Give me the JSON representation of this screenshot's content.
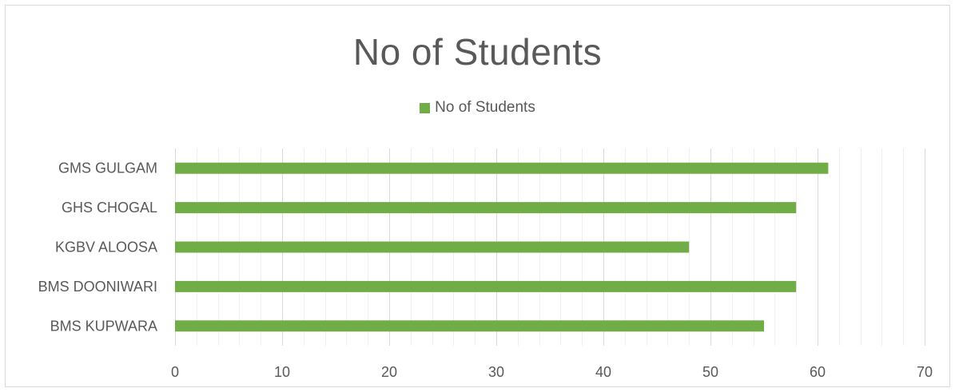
{
  "chart_data": {
    "type": "bar",
    "orientation": "horizontal",
    "title": "No of Students",
    "categories": [
      "BMS KUPWARA",
      "BMS DOONIWARI",
      "KGBV ALOOSA",
      "GHS CHOGAL",
      "GMS GULGAM"
    ],
    "series": [
      {
        "name": "No of Students",
        "values": [
          55,
          58,
          48,
          58,
          61
        ],
        "color": "#70ad47"
      }
    ],
    "xlim": [
      0,
      70
    ],
    "x_ticks": [
      "0",
      "10",
      "20",
      "30",
      "40",
      "50",
      "60",
      "70"
    ],
    "minor_grid_step": 2,
    "legend_position": "top",
    "grid": true,
    "xlabel": "",
    "ylabel": ""
  }
}
